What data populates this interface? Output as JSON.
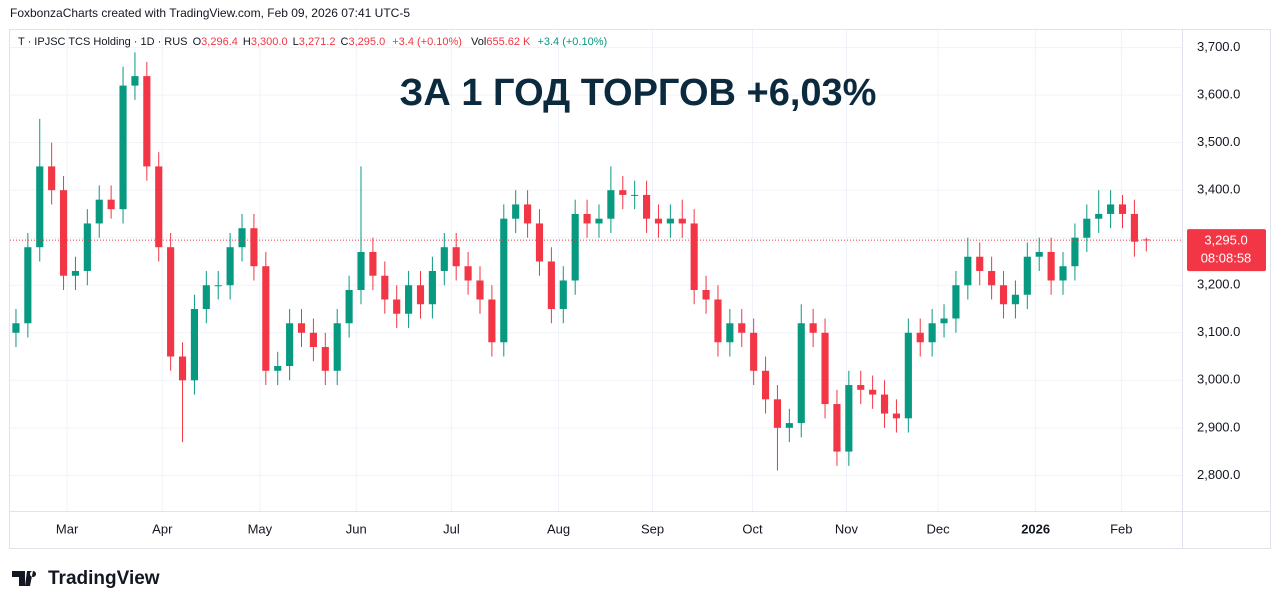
{
  "header": {
    "credit": "FoxbonzaCharts created with TradingView.com, Feb 09, 2026 07:41 UTC-5"
  },
  "legend": {
    "symbol": "T · IPJSC TCS Holding · 1D · RUS",
    "o_label": "O",
    "o": "3,296.4",
    "h_label": "H",
    "h": "3,300.0",
    "l_label": "L",
    "l": "3,271.2",
    "c_label": "C",
    "c": "3,295.0",
    "change": "+3.4 (+0.10%)",
    "vol_label": "Vol",
    "vol": "655.62 K",
    "vol_change": "+3.4 (+0.10%)"
  },
  "footer": {
    "logo": "TradingView"
  },
  "chart_data": {
    "type": "candlestick",
    "annotation": "ЗА 1 ГОД ТОРГОВ +6,03%",
    "up_color": "#089981",
    "down_color": "#f23645",
    "open": [
      3100,
      3120,
      3280,
      3450,
      3400,
      3220,
      3230,
      3330,
      3380,
      3360,
      3620,
      3640,
      3450,
      3280,
      3050,
      3000,
      3150,
      3200,
      3200,
      3280,
      3320,
      3240,
      3020,
      3030,
      3120,
      3100,
      3070,
      3020,
      3120,
      3190,
      3270,
      3220,
      3170,
      3140,
      3200,
      3160,
      3230,
      3280,
      3240,
      3210,
      3170,
      3080,
      3340,
      3370,
      3330,
      3250,
      3150,
      3210,
      3350,
      3330,
      3340,
      3400,
      3390,
      3390,
      3340,
      3330,
      3340,
      3330,
      3190,
      3170,
      3080,
      3120,
      3100,
      3020,
      2960,
      2900,
      2910,
      3120,
      3100,
      2950,
      2850,
      2990,
      2980,
      2970,
      2930,
      2920,
      3100,
      3080,
      3120,
      3130,
      3200,
      3260,
      3230,
      3200,
      3160,
      3180,
      3260,
      3270,
      3210,
      3240,
      3300,
      3340,
      3350,
      3370,
      3350,
      3296.4
    ],
    "high": [
      3150,
      3310,
      3550,
      3500,
      3430,
      3260,
      3360,
      3410,
      3410,
      3660,
      3690,
      3670,
      3480,
      3310,
      3080,
      3180,
      3230,
      3230,
      3310,
      3350,
      3350,
      3270,
      3060,
      3150,
      3150,
      3130,
      3100,
      3150,
      3220,
      3450,
      3300,
      3250,
      3200,
      3230,
      3230,
      3260,
      3310,
      3310,
      3270,
      3240,
      3200,
      3370,
      3400,
      3400,
      3360,
      3280,
      3240,
      3380,
      3380,
      3370,
      3450,
      3430,
      3420,
      3420,
      3370,
      3370,
      3380,
      3360,
      3220,
      3200,
      3150,
      3150,
      3130,
      3050,
      2990,
      2940,
      3160,
      3150,
      3130,
      2980,
      3020,
      3020,
      3010,
      3000,
      2960,
      3130,
      3130,
      3150,
      3160,
      3230,
      3300,
      3290,
      3260,
      3230,
      3210,
      3290,
      3300,
      3300,
      3270,
      3330,
      3370,
      3400,
      3400,
      3390,
      3380,
      3300
    ],
    "low": [
      3070,
      3090,
      3250,
      3370,
      3190,
      3190,
      3200,
      3300,
      3340,
      3330,
      3590,
      3420,
      3250,
      3020,
      2870,
      2970,
      3120,
      3170,
      3170,
      3250,
      3210,
      2990,
      2990,
      3000,
      3070,
      3040,
      2990,
      2990,
      3090,
      3160,
      3190,
      3140,
      3110,
      3110,
      3130,
      3130,
      3200,
      3210,
      3180,
      3140,
      3050,
      3050,
      3310,
      3300,
      3220,
      3120,
      3120,
      3180,
      3300,
      3300,
      3310,
      3360,
      3360,
      3310,
      3300,
      3300,
      3300,
      3160,
      3140,
      3050,
      3050,
      3070,
      2990,
      2930,
      2810,
      2870,
      2880,
      3070,
      2920,
      2820,
      2820,
      2950,
      2940,
      2900,
      2890,
      2890,
      3050,
      3050,
      3090,
      3100,
      3170,
      3200,
      3170,
      3130,
      3130,
      3150,
      3230,
      3180,
      3180,
      3210,
      3270,
      3310,
      3320,
      3320,
      3260,
      3271.2
    ],
    "close": [
      3120,
      3280,
      3450,
      3400,
      3220,
      3230,
      3330,
      3380,
      3360,
      3620,
      3640,
      3450,
      3280,
      3050,
      3000,
      3150,
      3200,
      3200,
      3280,
      3320,
      3240,
      3020,
      3030,
      3120,
      3100,
      3070,
      3020,
      3120,
      3190,
      3270,
      3220,
      3170,
      3140,
      3200,
      3160,
      3230,
      3280,
      3240,
      3210,
      3170,
      3080,
      3340,
      3370,
      3330,
      3250,
      3150,
      3210,
      3350,
      3330,
      3340,
      3400,
      3390,
      3390,
      3340,
      3330,
      3340,
      3330,
      3190,
      3170,
      3080,
      3120,
      3100,
      3020,
      2960,
      2900,
      2910,
      3120,
      3100,
      2950,
      2850,
      2990,
      2980,
      2970,
      2930,
      2920,
      3100,
      3080,
      3120,
      3130,
      3200,
      3260,
      3230,
      3200,
      3160,
      3180,
      3260,
      3270,
      3210,
      3240,
      3300,
      3340,
      3350,
      3370,
      3350,
      3291.6,
      3295
    ],
    "xlim": [
      -0.5,
      98
    ],
    "xticks": [
      {
        "value": 4.3,
        "label": "Mar"
      },
      {
        "value": 12.3,
        "label": "Apr"
      },
      {
        "value": 20.5,
        "label": "May"
      },
      {
        "value": 28.6,
        "label": "Jun"
      },
      {
        "value": 36.6,
        "label": "Jul"
      },
      {
        "value": 45.6,
        "label": "Aug"
      },
      {
        "value": 53.5,
        "label": "Sep"
      },
      {
        "value": 61.9,
        "label": "Oct"
      },
      {
        "value": 69.8,
        "label": "Nov"
      },
      {
        "value": 77.5,
        "label": "Dec"
      },
      {
        "value": 85.7,
        "label": "2026"
      },
      {
        "value": 92.9,
        "label": "Feb"
      }
    ],
    "ylim": [
      2725,
      3737
    ],
    "yticks": [
      {
        "value": 2800,
        "label": "2,800.0"
      },
      {
        "value": 2900,
        "label": "2,900.0"
      },
      {
        "value": 3000,
        "label": "3,000.0"
      },
      {
        "value": 3100,
        "label": "3,100.0"
      },
      {
        "value": 3200,
        "label": "3,200.0"
      },
      {
        "value": 3300,
        "label": "3,300.0"
      },
      {
        "value": 3400,
        "label": "3,400.0"
      },
      {
        "value": 3500,
        "label": "3,500.0"
      },
      {
        "value": 3600,
        "label": "3,600.0"
      },
      {
        "value": 3700,
        "label": "3,700.0"
      }
    ],
    "grid": true,
    "last_price": {
      "value": 3295,
      "label": "3,295.0"
    },
    "countdown": "08:08:58"
  }
}
